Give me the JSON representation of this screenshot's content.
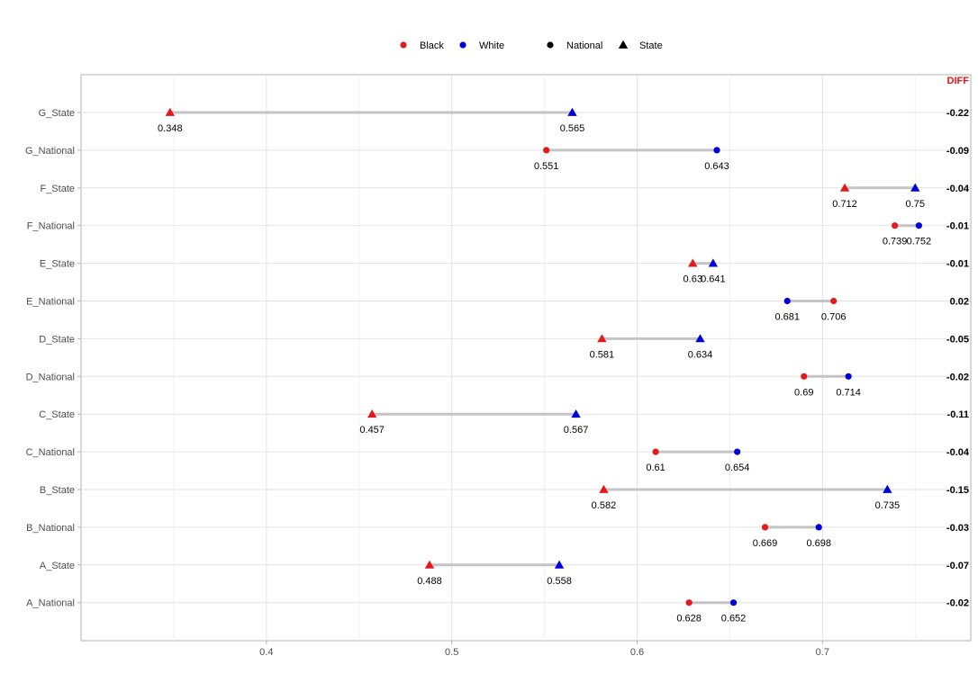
{
  "chart_data": {
    "type": "dumbbell",
    "title": "",
    "xlabel": "",
    "ylabel": "",
    "xlim": [
      0.3,
      0.78
    ],
    "x_ticks": [
      0.4,
      0.5,
      0.6,
      0.7
    ],
    "x_tick_labels": [
      "0.4",
      "0.5",
      "0.6",
      "0.7"
    ],
    "grid": true,
    "legend_position": "top",
    "legend": {
      "color_items": [
        {
          "label": "Black",
          "color": "#e41a1c"
        },
        {
          "label": "White",
          "color": "#0000dd"
        }
      ],
      "shape_items": [
        {
          "label": "National",
          "shape": "circle"
        },
        {
          "label": "State",
          "shape": "triangle"
        }
      ]
    },
    "diff_header": "DIFF",
    "diff_header_color": "#ee1111",
    "rows": [
      {
        "label": "G_State",
        "shape": "triangle",
        "black": 0.348,
        "white": 0.565,
        "black_label": "0.348",
        "white_label": "0.565",
        "diff": "-0.22"
      },
      {
        "label": "G_National",
        "shape": "circle",
        "black": 0.551,
        "white": 0.643,
        "black_label": "0.551",
        "white_label": "0.643",
        "diff": "-0.09"
      },
      {
        "label": "F_State",
        "shape": "triangle",
        "black": 0.712,
        "white": 0.75,
        "black_label": "0.712",
        "white_label": "0.75",
        "diff": "-0.04"
      },
      {
        "label": "F_National",
        "shape": "circle",
        "black": 0.739,
        "white": 0.752,
        "black_label": "0.739",
        "white_label": "0.752",
        "diff": "-0.01"
      },
      {
        "label": "E_State",
        "shape": "triangle",
        "black": 0.63,
        "white": 0.641,
        "black_label": "0.63",
        "white_label": "0.641",
        "diff": "-0.01"
      },
      {
        "label": "E_National",
        "shape": "circle",
        "black": 0.706,
        "white": 0.681,
        "black_label": "0.706",
        "white_label": "0.681",
        "diff": "0.02"
      },
      {
        "label": "D_State",
        "shape": "triangle",
        "black": 0.581,
        "white": 0.634,
        "black_label": "0.581",
        "white_label": "0.634",
        "diff": "-0.05"
      },
      {
        "label": "D_National",
        "shape": "circle",
        "black": 0.69,
        "white": 0.714,
        "black_label": "0.69",
        "white_label": "0.714",
        "diff": "-0.02"
      },
      {
        "label": "C_State",
        "shape": "triangle",
        "black": 0.457,
        "white": 0.567,
        "black_label": "0.457",
        "white_label": "0.567",
        "diff": "-0.11"
      },
      {
        "label": "C_National",
        "shape": "circle",
        "black": 0.61,
        "white": 0.654,
        "black_label": "0.61",
        "white_label": "0.654",
        "diff": "-0.04"
      },
      {
        "label": "B_State",
        "shape": "triangle",
        "black": 0.582,
        "white": 0.735,
        "black_label": "0.582",
        "white_label": "0.735",
        "diff": "-0.15"
      },
      {
        "label": "B_National",
        "shape": "circle",
        "black": 0.669,
        "white": 0.698,
        "black_label": "0.669",
        "white_label": "0.698",
        "diff": "-0.03"
      },
      {
        "label": "A_State",
        "shape": "triangle",
        "black": 0.488,
        "white": 0.558,
        "black_label": "0.488",
        "white_label": "0.558",
        "diff": "-0.07"
      },
      {
        "label": "A_National",
        "shape": "circle",
        "black": 0.628,
        "white": 0.652,
        "black_label": "0.628",
        "white_label": "0.652",
        "diff": "-0.02"
      }
    ]
  }
}
